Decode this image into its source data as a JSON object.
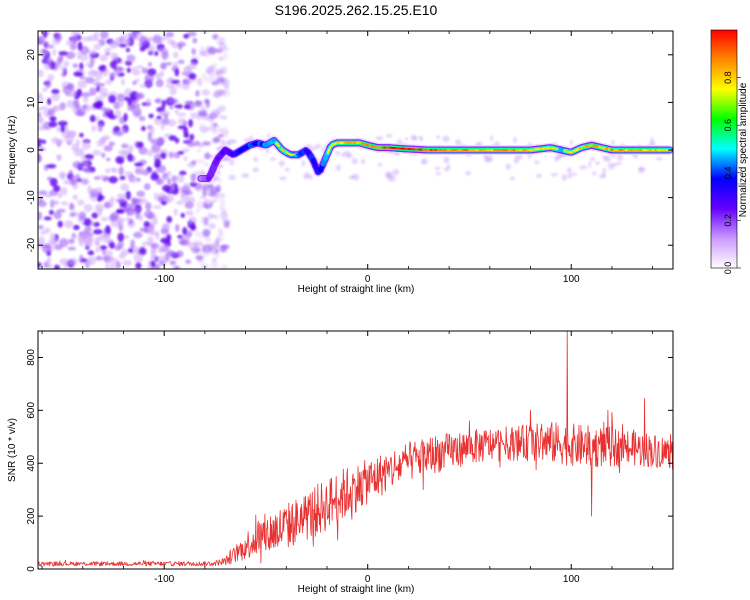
{
  "figure_title": "S196.2025.262.15.25.E10",
  "chart_data": [
    {
      "type": "heatmap",
      "name": "spectrogram",
      "xlabel": "Height of straight line (km)",
      "ylabel": "Frequency (Hz)",
      "xlim": [
        -162,
        150
      ],
      "ylim": [
        -25,
        25
      ],
      "xticks": [
        -100,
        0,
        100
      ],
      "yticks": [
        -20,
        -10,
        0,
        10,
        20
      ],
      "grid": false,
      "noise_region": {
        "x_range": [
          -162,
          -75
        ],
        "y_range": [
          -25,
          25
        ]
      },
      "ridge": {
        "x": [
          -82,
          -78,
          -74,
          -70,
          -66,
          -62,
          -58,
          -54,
          -50,
          -46,
          -42,
          -38,
          -34,
          -30,
          -27,
          -24,
          -22,
          -20,
          -18,
          -15,
          -12,
          -8,
          -4,
          0,
          5,
          10,
          20,
          30,
          40,
          50,
          60,
          70,
          80,
          90,
          95,
          100,
          105,
          110,
          115,
          120,
          130,
          140,
          148
        ],
        "y": [
          -6,
          -6,
          -2,
          0,
          -1,
          0,
          1,
          1.5,
          1,
          2,
          0,
          -1,
          -1,
          0,
          -2,
          -5,
          -3,
          -1,
          1,
          1.5,
          1.5,
          1.5,
          1.5,
          1,
          0.5,
          0.5,
          0.2,
          0,
          0,
          0,
          0,
          0,
          0,
          0.5,
          0,
          -0.5,
          0.5,
          1,
          0.5,
          0,
          0,
          0,
          0
        ],
        "amplitude": [
          0.25,
          0.35,
          0.3,
          0.4,
          0.45,
          0.55,
          0.6,
          0.55,
          0.6,
          0.7,
          0.75,
          0.7,
          0.65,
          0.5,
          0.55,
          0.5,
          0.6,
          0.7,
          0.75,
          0.8,
          0.8,
          0.85,
          0.8,
          0.85,
          0.9,
          0.95,
          0.98,
          0.9,
          0.85,
          0.85,
          0.8,
          0.85,
          0.8,
          0.75,
          0.7,
          0.8,
          0.75,
          0.85,
          0.8,
          0.85,
          0.8,
          0.8,
          0.75
        ]
      },
      "colorbar": {
        "label": "Normalized spectral amplitude",
        "range": [
          0,
          1
        ],
        "ticks": [
          "0.0",
          "0.2",
          "0.4",
          "0.6",
          "0.8"
        ],
        "colors": [
          "#ffffff",
          "#cc99ff",
          "#6600ff",
          "#0000ff",
          "#00ffff",
          "#00ff00",
          "#ffff00",
          "#ff8800",
          "#ff0000"
        ]
      }
    },
    {
      "type": "line",
      "name": "snr",
      "xlabel": "Height of straight line (km)",
      "ylabel": "SNR (10 * v/v)",
      "xlim": [
        -162,
        150
      ],
      "ylim": [
        0,
        900
      ],
      "xticks": [
        -100,
        0,
        100
      ],
      "yticks": [
        0,
        200,
        400,
        600,
        800
      ],
      "grid": false,
      "color": "#e83030",
      "envelope": {
        "x": [
          -162,
          -80,
          -75,
          -70,
          -66,
          -62,
          -58,
          -54,
          -50,
          -45,
          -40,
          -35,
          -30,
          -25,
          -20,
          -15,
          -10,
          -5,
          0,
          10,
          20,
          30,
          40,
          50,
          60,
          70,
          80,
          90,
          100,
          110,
          120,
          130,
          140,
          150
        ],
        "mean": [
          20,
          20,
          22,
          30,
          50,
          75,
          100,
          120,
          130,
          145,
          160,
          180,
          200,
          220,
          245,
          270,
          290,
          310,
          330,
          370,
          405,
          430,
          445,
          460,
          470,
          475,
          478,
          478,
          470,
          462,
          462,
          458,
          448,
          440
        ],
        "amp": [
          8,
          9,
          10,
          15,
          30,
          45,
          60,
          75,
          80,
          85,
          90,
          90,
          95,
          100,
          100,
          100,
          100,
          90,
          85,
          80,
          75,
          75,
          70,
          65,
          65,
          65,
          70,
          80,
          80,
          80,
          75,
          70,
          65,
          60
        ]
      },
      "spikes": [
        {
          "x": 98,
          "y": 900
        },
        {
          "x": 110,
          "y": 200
        },
        {
          "x": 136,
          "y": 645
        },
        {
          "x": 80,
          "y": 600
        },
        {
          "x": 118,
          "y": 600
        },
        {
          "x": 50,
          "y": 560
        }
      ]
    }
  ]
}
